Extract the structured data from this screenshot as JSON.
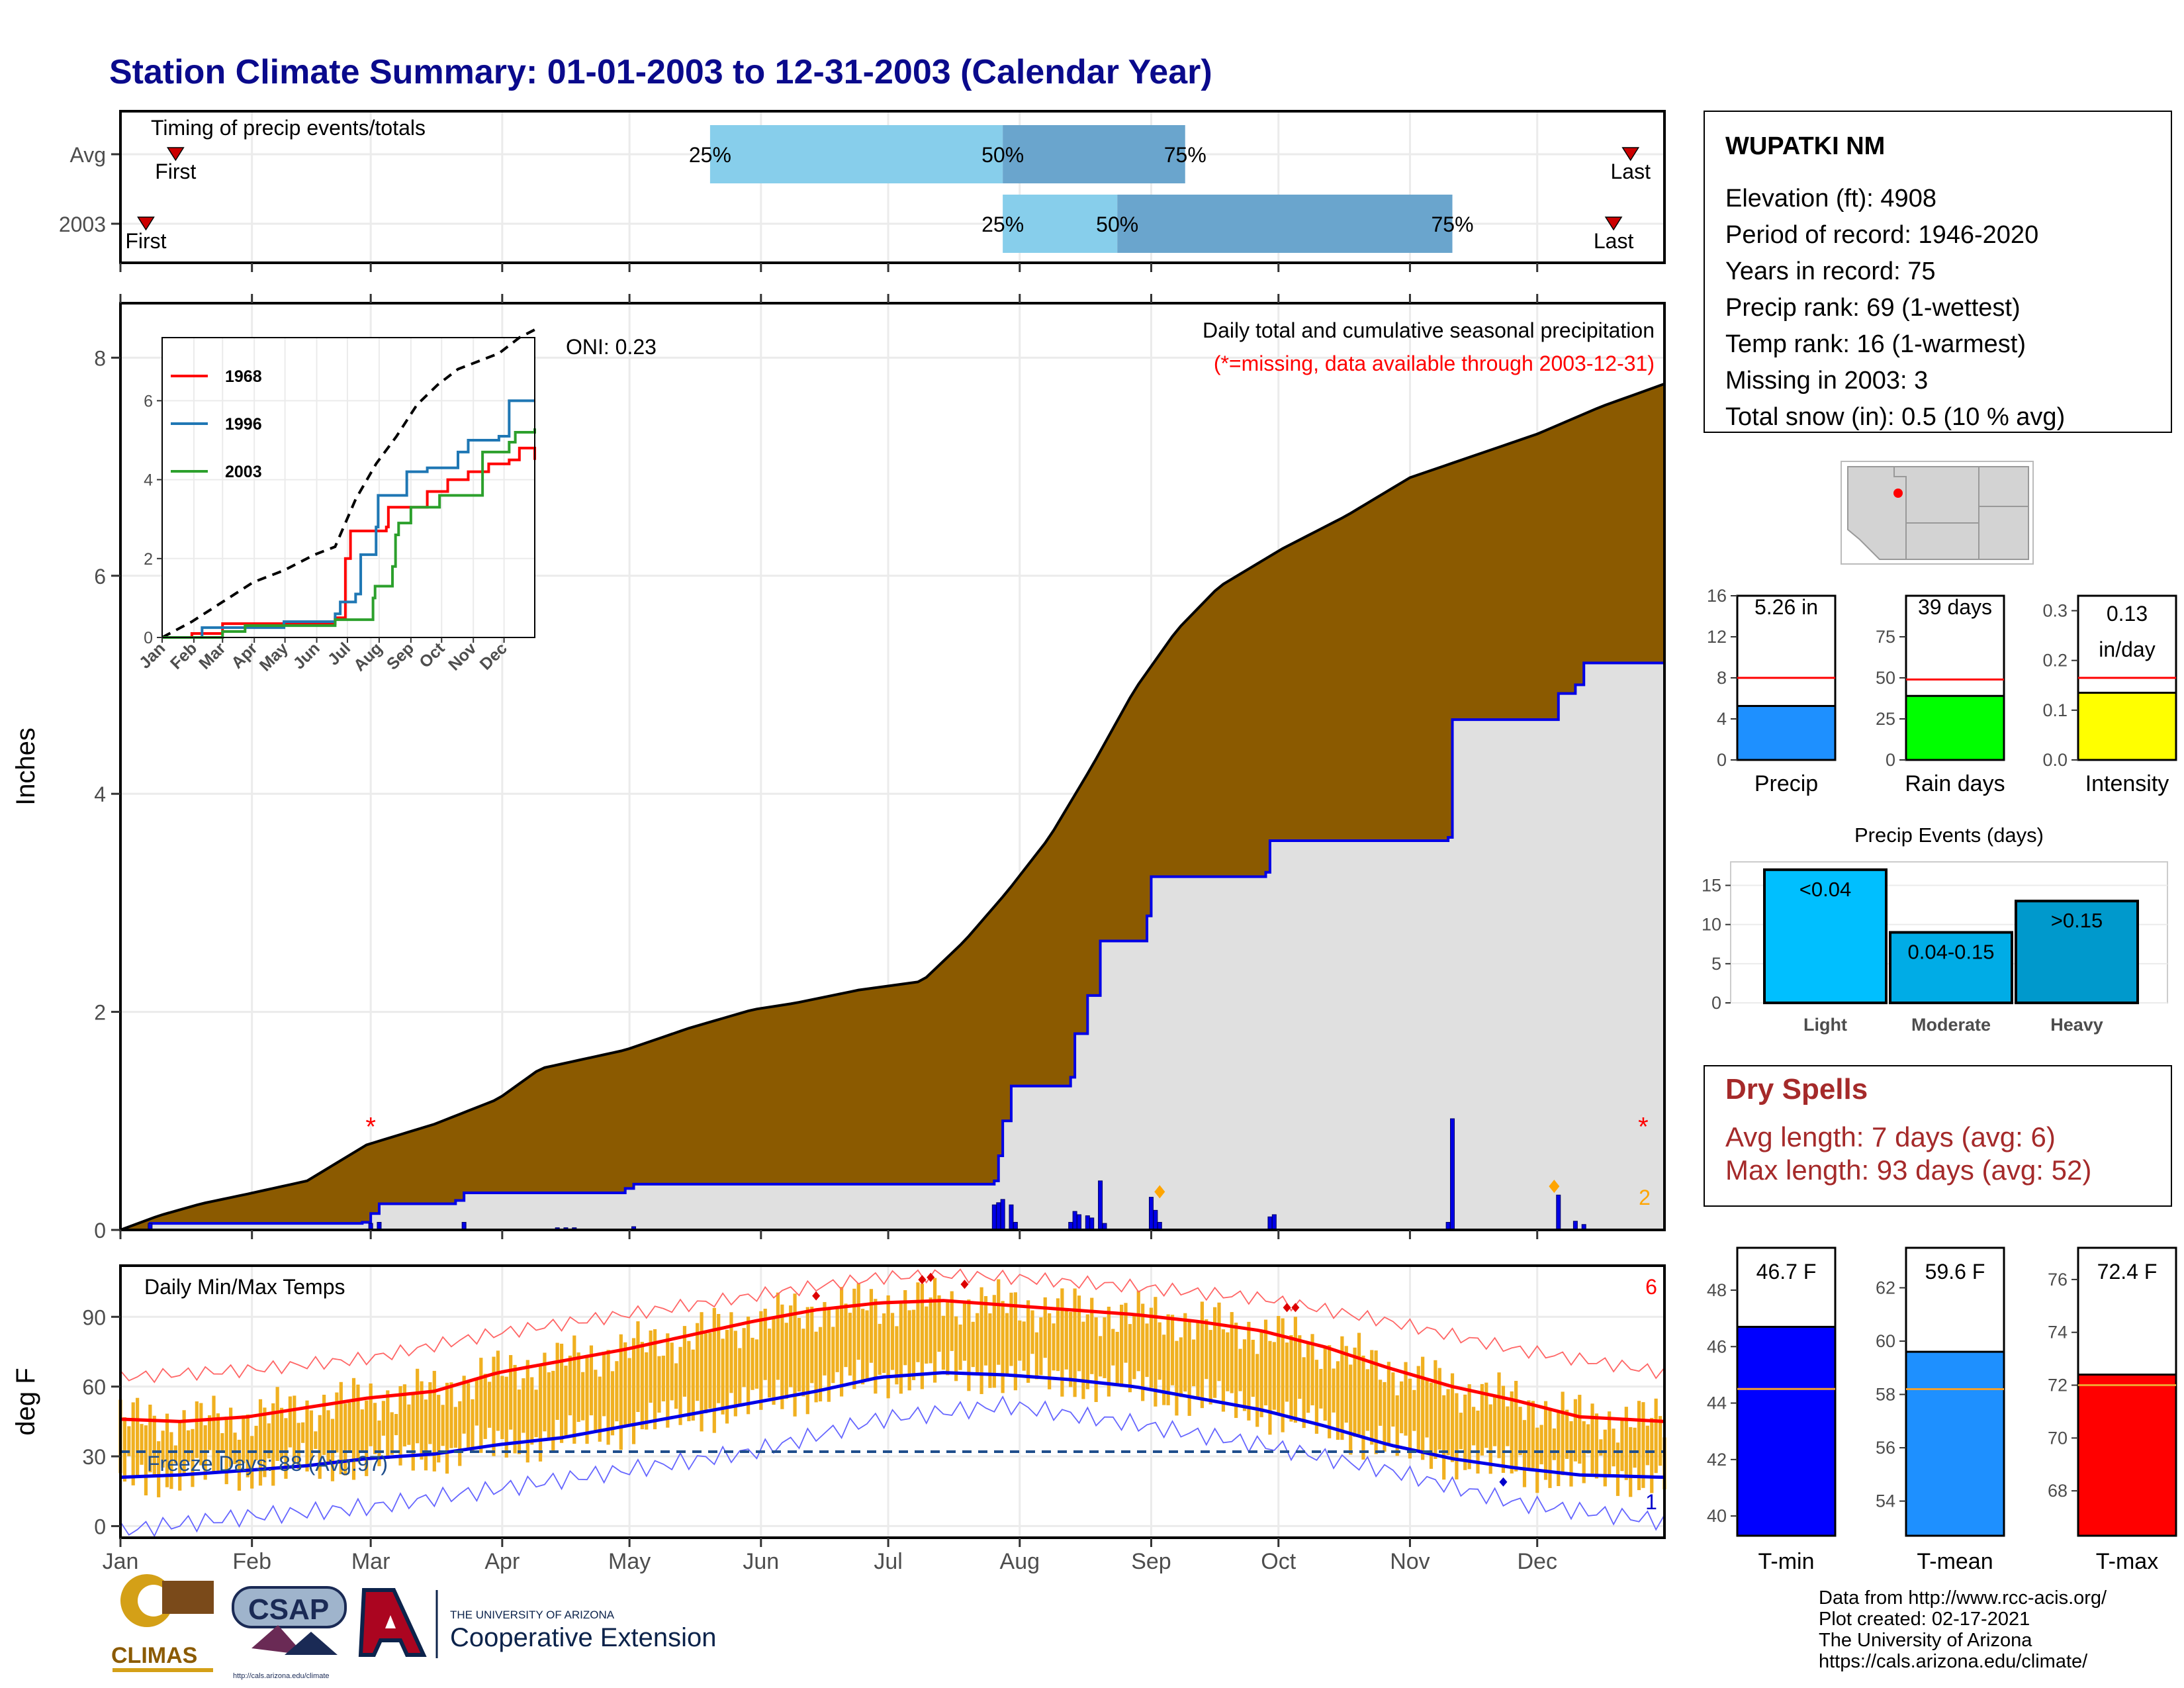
{
  "title": "Station Climate Summary: 01-01-2003 to 12-31-2003 (Calendar Year)",
  "colors": {
    "title": "#0a0a8c",
    "cum_avg_fill": "#8b5a00",
    "cum_year_fill": "#e0e0e0",
    "cum_year_line": "#0000e6",
    "daily_bar": "#0000e6",
    "temp_bar": "#f0b020",
    "tmax_avg": "#ff0000",
    "tmin_avg": "#0000e6",
    "q_light": "#87ceeb",
    "q_dark": "#6aa5cd",
    "precip_bar": "#1e90ff",
    "raindays_bar": "#00ff00",
    "intensity_bar": "#ffff00",
    "light": "#00bfff",
    "moderate": "#00ace6",
    "heavy": "#0099cc",
    "tmin_bar": "#0000ff",
    "tmean_bar": "#1e90ff",
    "tmax_bar": "#ff0000",
    "dryspell_text": "#a52a2a",
    "freeze_line": "#1f4e8c",
    "avg_line": "#ff0000",
    "normal_line": "#f0a030"
  },
  "months": [
    "Jan",
    "Feb",
    "Mar",
    "Apr",
    "May",
    "Jun",
    "Jul",
    "Aug",
    "Sep",
    "Oct",
    "Nov",
    "Dec"
  ],
  "timing": {
    "label": "Timing of precip events/totals",
    "rows": [
      {
        "name": "Avg",
        "first_doy": 14,
        "last_doy": 357,
        "first_label": "First",
        "last_label": "Last",
        "q25_doy": 140,
        "q50_doy": 209,
        "q75_doy": 252,
        "q25_label": "25%",
        "q50_label": "50%",
        "q75_label": "75%"
      },
      {
        "name": "2003",
        "first_doy": 7,
        "last_doy": 353,
        "first_label": "First",
        "last_label": "Last",
        "q25_doy": 209,
        "q50_doy": 236,
        "q75_doy": 315,
        "q25_label": "25%",
        "q50_label": "50%",
        "q75_label": "75%"
      }
    ]
  },
  "precip": {
    "ylabel": "Inches",
    "ticks": [
      0,
      2,
      4,
      6,
      8
    ],
    "ylim": [
      0,
      8.5
    ],
    "title": "Daily total and cumulative seasonal precipitation",
    "subtitle": "(*=missing, data available through 2003-12-31)",
    "oni": "ONI: 0.23",
    "missing_count_label": "2",
    "cum_avg_points": [
      [
        1,
        0
      ],
      [
        10,
        0.13
      ],
      [
        20,
        0.24
      ],
      [
        31,
        0.33
      ],
      [
        45,
        0.45
      ],
      [
        59,
        0.78
      ],
      [
        75,
        0.97
      ],
      [
        90,
        1.2
      ],
      [
        100,
        1.48
      ],
      [
        120,
        1.65
      ],
      [
        135,
        1.85
      ],
      [
        150,
        2.02
      ],
      [
        160,
        2.08
      ],
      [
        175,
        2.2
      ],
      [
        190,
        2.28
      ],
      [
        200,
        2.65
      ],
      [
        210,
        3.1
      ],
      [
        220,
        3.6
      ],
      [
        230,
        4.25
      ],
      [
        240,
        4.95
      ],
      [
        250,
        5.5
      ],
      [
        260,
        5.9
      ],
      [
        275,
        6.25
      ],
      [
        290,
        6.55
      ],
      [
        305,
        6.9
      ],
      [
        320,
        7.1
      ],
      [
        335,
        7.3
      ],
      [
        350,
        7.55
      ],
      [
        365,
        7.76
      ]
    ],
    "cum_2003_points": [
      [
        1,
        0
      ],
      [
        7,
        0
      ],
      [
        8,
        0.06
      ],
      [
        58,
        0.07
      ],
      [
        60,
        0.15
      ],
      [
        62,
        0.24
      ],
      [
        80,
        0.27
      ],
      [
        82,
        0.34
      ],
      [
        120,
        0.38
      ],
      [
        122,
        0.42
      ],
      [
        207,
        0.45
      ],
      [
        208,
        0.68
      ],
      [
        209,
        1.0
      ],
      [
        211,
        1.32
      ],
      [
        225,
        1.4
      ],
      [
        226,
        1.8
      ],
      [
        229,
        2.15
      ],
      [
        232,
        2.65
      ],
      [
        243,
        2.88
      ],
      [
        244,
        3.24
      ],
      [
        271,
        3.28
      ],
      [
        272,
        3.57
      ],
      [
        314,
        3.6
      ],
      [
        315,
        4.68
      ],
      [
        339,
        4.68
      ],
      [
        340,
        4.92
      ],
      [
        344,
        5.0
      ],
      [
        346,
        5.2
      ],
      [
        365,
        5.26
      ]
    ],
    "daily": [
      [
        8,
        0.06
      ],
      [
        60,
        0.06
      ],
      [
        62,
        0.07
      ],
      [
        82,
        0.07
      ],
      [
        104,
        0.02
      ],
      [
        106,
        0.02
      ],
      [
        108,
        0.02
      ],
      [
        122,
        0.03
      ],
      [
        207,
        0.23
      ],
      [
        208,
        0.25
      ],
      [
        209,
        0.28
      ],
      [
        211,
        0.23
      ],
      [
        212,
        0.07
      ],
      [
        225,
        0.07
      ],
      [
        226,
        0.17
      ],
      [
        227,
        0.14
      ],
      [
        229,
        0.13
      ],
      [
        230,
        0.11
      ],
      [
        232,
        0.45
      ],
      [
        233,
        0.06
      ],
      [
        244,
        0.3
      ],
      [
        245,
        0.18
      ],
      [
        246,
        0.07
      ],
      [
        272,
        0.12
      ],
      [
        273,
        0.14
      ],
      [
        314,
        0.07
      ],
      [
        315,
        1.02
      ],
      [
        340,
        0.32
      ],
      [
        344,
        0.08
      ],
      [
        346,
        0.05
      ]
    ],
    "missing_marks": [
      [
        60,
        1.0
      ],
      [
        360,
        1.0
      ]
    ],
    "orange_marks": [
      [
        246,
        0.35
      ],
      [
        339,
        0.4
      ]
    ]
  },
  "inset": {
    "ticks": [
      0,
      2,
      4,
      6
    ],
    "ylim": [
      0,
      7.6
    ],
    "legend": [
      "1968",
      "1996",
      "2003"
    ],
    "colors": [
      "#ff0000",
      "#1f77b4",
      "#2ca02c"
    ],
    "series_1968": [
      [
        1,
        0
      ],
      [
        30,
        0.1
      ],
      [
        60,
        0.35
      ],
      [
        170,
        0.5
      ],
      [
        180,
        2.0
      ],
      [
        185,
        2.7
      ],
      [
        220,
        2.8
      ],
      [
        222,
        3.3
      ],
      [
        260,
        3.7
      ],
      [
        280,
        4.0
      ],
      [
        300,
        4.2
      ],
      [
        320,
        4.4
      ],
      [
        340,
        4.5
      ],
      [
        350,
        4.8
      ],
      [
        365,
        4.5
      ]
    ],
    "series_1996": [
      [
        1,
        0
      ],
      [
        40,
        0.25
      ],
      [
        120,
        0.4
      ],
      [
        170,
        0.6
      ],
      [
        175,
        0.9
      ],
      [
        190,
        1.1
      ],
      [
        195,
        2.1
      ],
      [
        210,
        2.8
      ],
      [
        212,
        3.6
      ],
      [
        240,
        4.2
      ],
      [
        260,
        4.3
      ],
      [
        290,
        4.7
      ],
      [
        300,
        5.0
      ],
      [
        330,
        5.1
      ],
      [
        340,
        6.0
      ],
      [
        365,
        6.0
      ]
    ],
    "series_2003": [
      [
        1,
        0
      ],
      [
        60,
        0.15
      ],
      [
        82,
        0.3
      ],
      [
        170,
        0.45
      ],
      [
        207,
        1.0
      ],
      [
        209,
        1.3
      ],
      [
        226,
        1.8
      ],
      [
        229,
        2.6
      ],
      [
        232,
        2.9
      ],
      [
        244,
        3.3
      ],
      [
        272,
        3.6
      ],
      [
        314,
        4.7
      ],
      [
        340,
        4.95
      ],
      [
        346,
        5.2
      ],
      [
        365,
        5.3
      ]
    ],
    "series_avg": [
      [
        1,
        0
      ],
      [
        30,
        0.4
      ],
      [
        60,
        0.9
      ],
      [
        90,
        1.4
      ],
      [
        120,
        1.7
      ],
      [
        150,
        2.1
      ],
      [
        170,
        2.3
      ],
      [
        190,
        3.5
      ],
      [
        210,
        4.4
      ],
      [
        230,
        5.1
      ],
      [
        250,
        5.9
      ],
      [
        270,
        6.4
      ],
      [
        290,
        6.8
      ],
      [
        310,
        7.0
      ],
      [
        330,
        7.2
      ],
      [
        350,
        7.6
      ],
      [
        365,
        7.8
      ]
    ]
  },
  "temps": {
    "ylabel": "deg F",
    "ticks": [
      0,
      30,
      60,
      90
    ],
    "ylim": [
      -5,
      112
    ],
    "title": "Daily Min/Max Temps",
    "freeze_label": "Freeze Days: 88 (Avg:97)",
    "freeze_level": 32,
    "max_record_count_label": "6",
    "min_record_count_label": "1",
    "tmax_normal": [
      [
        1,
        46
      ],
      [
        15,
        45
      ],
      [
        31,
        47
      ],
      [
        45,
        51
      ],
      [
        59,
        55
      ],
      [
        75,
        58
      ],
      [
        90,
        66
      ],
      [
        105,
        71
      ],
      [
        120,
        76
      ],
      [
        135,
        82
      ],
      [
        150,
        88
      ],
      [
        165,
        93
      ],
      [
        180,
        96
      ],
      [
        195,
        97
      ],
      [
        210,
        95
      ],
      [
        225,
        93
      ],
      [
        240,
        91
      ],
      [
        255,
        88
      ],
      [
        270,
        84
      ],
      [
        285,
        77
      ],
      [
        300,
        68
      ],
      [
        315,
        60
      ],
      [
        330,
        54
      ],
      [
        345,
        47
      ],
      [
        365,
        45
      ]
    ],
    "tmin_normal": [
      [
        1,
        21
      ],
      [
        15,
        22
      ],
      [
        31,
        24
      ],
      [
        45,
        26
      ],
      [
        59,
        29
      ],
      [
        75,
        31
      ],
      [
        90,
        35
      ],
      [
        105,
        38
      ],
      [
        120,
        43
      ],
      [
        135,
        48
      ],
      [
        150,
        53
      ],
      [
        165,
        58
      ],
      [
        180,
        64
      ],
      [
        195,
        66
      ],
      [
        210,
        65
      ],
      [
        225,
        63
      ],
      [
        240,
        60
      ],
      [
        255,
        55
      ],
      [
        270,
        50
      ],
      [
        285,
        43
      ],
      [
        300,
        35
      ],
      [
        315,
        29
      ],
      [
        330,
        25
      ],
      [
        345,
        22
      ],
      [
        365,
        21
      ]
    ],
    "tmax_record": [
      [
        1,
        64
      ],
      [
        30,
        67
      ],
      [
        59,
        72
      ],
      [
        90,
        83
      ],
      [
        120,
        91
      ],
      [
        150,
        99
      ],
      [
        180,
        107
      ],
      [
        195,
        108
      ],
      [
        210,
        107
      ],
      [
        240,
        103
      ],
      [
        270,
        98
      ],
      [
        300,
        88
      ],
      [
        330,
        76
      ],
      [
        365,
        66
      ]
    ],
    "tmin_record": [
      [
        1,
        -2
      ],
      [
        30,
        4
      ],
      [
        59,
        8
      ],
      [
        90,
        16
      ],
      [
        120,
        24
      ],
      [
        150,
        32
      ],
      [
        180,
        46
      ],
      [
        210,
        52
      ],
      [
        240,
        44
      ],
      [
        270,
        35
      ],
      [
        300,
        24
      ],
      [
        330,
        10
      ],
      [
        365,
        2
      ]
    ],
    "record_high_marks": [
      [
        165,
        99
      ],
      [
        190,
        106
      ],
      [
        192,
        107
      ],
      [
        200,
        104
      ],
      [
        276,
        94
      ],
      [
        278,
        94
      ]
    ],
    "record_low_marks": [
      [
        327,
        19
      ]
    ]
  },
  "station": {
    "name": "WUPATKI NM",
    "lines": [
      "Elevation (ft): 4908",
      "Period of record: 1946-2020",
      "Years in record: 75",
      "Precip rank: 69 (1-wettest)",
      "Temp rank: 16 (1-warmest)",
      "Missing in 2003: 3",
      "Total snow (in): 0.5 (10 % avg)"
    ]
  },
  "gauges": [
    {
      "key": "precip",
      "label": "Precip",
      "value_label": "5.26 in",
      "value": 5.26,
      "avg": 8.0,
      "ticks": [
        0,
        4,
        8,
        12,
        16
      ],
      "ylim": [
        0,
        16
      ]
    },
    {
      "key": "raindays",
      "label": "Rain days",
      "value_label": "39 days",
      "value": 39,
      "avg": 49,
      "ticks": [
        0,
        25,
        50,
        75
      ],
      "ylim": [
        0,
        100
      ]
    },
    {
      "key": "intensity",
      "label": "Intensity",
      "value_label": "0.13\nin/day",
      "value": 0.135,
      "avg": 0.165,
      "ticks": [
        "0.0",
        "0.1",
        "0.2",
        "0.3"
      ],
      "ticks_num": [
        0,
        0.1,
        0.2,
        0.3
      ],
      "ylim": [
        0,
        0.33
      ]
    }
  ],
  "events": {
    "title": "Precip Events (days)",
    "ticks": [
      0,
      5,
      10,
      15
    ],
    "ylim": [
      0,
      18
    ],
    "categories": [
      "Light",
      "Moderate",
      "Heavy"
    ],
    "values": [
      17,
      9,
      13
    ],
    "bar_labels": [
      "<0.04",
      "0.04-0.15",
      ">0.15"
    ]
  },
  "dryspells": {
    "title": "Dry Spells",
    "avg_length": "Avg length: 7 days (avg: 6)",
    "max_length": "Max length: 93 days (avg: 52)"
  },
  "temp_gauges": [
    {
      "key": "tmin",
      "label": "T-min",
      "value_label": "46.7 F",
      "value": 46.7,
      "normal": 44.5,
      "ticks": [
        40,
        42,
        44,
        46,
        48
      ],
      "ylim": [
        39.3,
        49.5
      ]
    },
    {
      "key": "tmean",
      "label": "T-mean",
      "value_label": "59.6 F",
      "value": 59.6,
      "normal": 58.2,
      "ticks": [
        54,
        56,
        58,
        60,
        62
      ],
      "ylim": [
        52.7,
        63.5
      ]
    },
    {
      "key": "tmax",
      "label": "T-max",
      "value_label": "72.4 F",
      "value": 72.4,
      "normal": 72.0,
      "ticks": [
        68,
        70,
        72,
        74,
        76
      ],
      "ylim": [
        66.3,
        77.2
      ]
    }
  ],
  "footer": {
    "lines": [
      "Data from http://www.rcc-acis.org/",
      "Plot created: 02-17-2021",
      "The University of Arizona",
      "https://cals.arizona.edu/climate/"
    ],
    "climas": "CLIMAS",
    "csap": "CSAP",
    "csap_url": "http://cals.arizona.edu/climate",
    "ua_top": "THE UNIVERSITY OF ARIZONA",
    "ua_bottom": "Cooperative Extension"
  }
}
